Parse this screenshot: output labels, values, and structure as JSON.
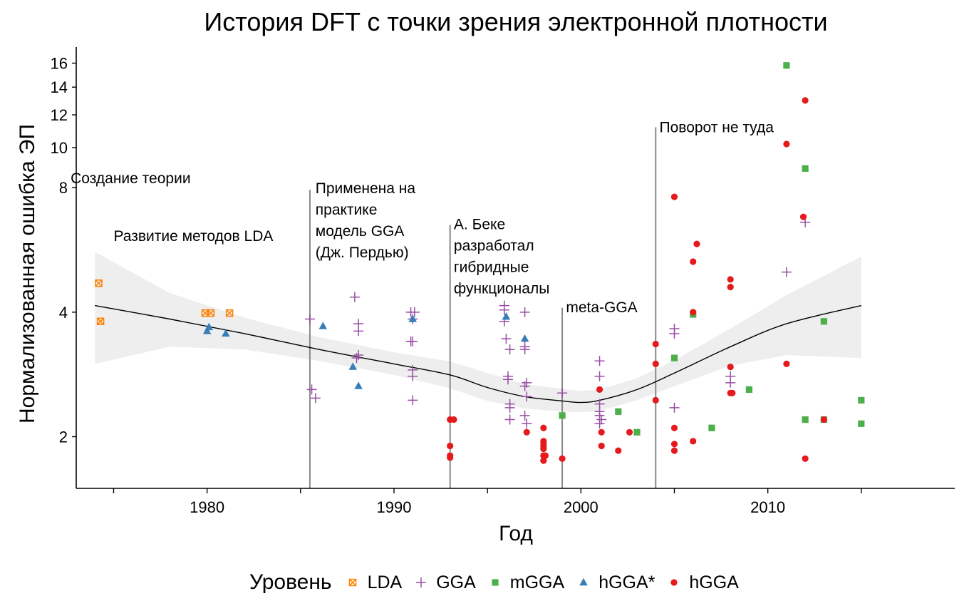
{
  "chart_data": {
    "type": "scatter",
    "title": "История DFT с точки зрения электронной плотности",
    "xlabel": "Год",
    "ylabel": "Нормализованная ошибка ЭП",
    "xlim": [
      1973,
      2020
    ],
    "ylim": [
      1.5,
      17.5
    ],
    "y_scale": "log",
    "x_ticks": [
      1980,
      1990,
      2000,
      2010
    ],
    "y_ticks": [
      2,
      4,
      8,
      10,
      12,
      14,
      16
    ],
    "legend_title": "Уровень",
    "legend_position": "bottom",
    "series": [
      {
        "name": "LDA",
        "color": "#ff7f00",
        "marker": "square-x",
        "points": [
          [
            1974.2,
            4.7
          ],
          [
            1974.3,
            3.8
          ],
          [
            1979.9,
            3.98
          ],
          [
            1980.2,
            3.98
          ],
          [
            1981.2,
            3.98
          ]
        ]
      },
      {
        "name": "GGA",
        "color": "#984ea3",
        "marker": "plus",
        "points": [
          [
            1985.5,
            3.85
          ],
          [
            1985.6,
            2.6
          ],
          [
            1985.8,
            2.48
          ],
          [
            1987.9,
            4.35
          ],
          [
            1988.0,
            3.1
          ],
          [
            1988.1,
            3.15
          ],
          [
            1988.1,
            3.75
          ],
          [
            1988.1,
            3.6
          ],
          [
            1990.9,
            4.0
          ],
          [
            1990.9,
            3.4
          ],
          [
            1991.0,
            3.4
          ],
          [
            1991.0,
            3.85
          ],
          [
            1991.0,
            2.9
          ],
          [
            1991.0,
            2.8
          ],
          [
            1991.0,
            2.45
          ],
          [
            1991.1,
            4.0
          ],
          [
            1995.9,
            4.15
          ],
          [
            1995.9,
            4.05
          ],
          [
            1995.9,
            3.8
          ],
          [
            1996.0,
            3.45
          ],
          [
            1996.1,
            2.8
          ],
          [
            1996.1,
            2.75
          ],
          [
            1996.2,
            3.25
          ],
          [
            1996.2,
            2.4
          ],
          [
            1996.2,
            2.35
          ],
          [
            1996.2,
            2.2
          ],
          [
            1997.0,
            3.3
          ],
          [
            1997.0,
            3.25
          ],
          [
            1997.0,
            4.0
          ],
          [
            1997.0,
            2.65
          ],
          [
            1997.0,
            2.25
          ],
          [
            1997.1,
            2.7
          ],
          [
            1997.1,
            2.5
          ],
          [
            1997.1,
            2.15
          ],
          [
            1999.0,
            2.55
          ],
          [
            2001.0,
            3.05
          ],
          [
            2001.0,
            2.8
          ],
          [
            2001.0,
            2.4
          ],
          [
            2001.0,
            2.3
          ],
          [
            2001.0,
            2.25
          ],
          [
            2001.0,
            2.15
          ],
          [
            2001.1,
            2.2
          ],
          [
            2005.0,
            3.65
          ],
          [
            2005.0,
            3.55
          ],
          [
            2005.0,
            2.35
          ],
          [
            2008.0,
            2.8
          ],
          [
            2008.0,
            2.7
          ],
          [
            2011.0,
            5.0
          ],
          [
            2012.0,
            6.6
          ]
        ]
      },
      {
        "name": "mGGA",
        "color": "#4daf4a",
        "marker": "square",
        "points": [
          [
            1999.0,
            2.25
          ],
          [
            2002.0,
            2.3
          ],
          [
            2003.0,
            2.05
          ],
          [
            2005.0,
            3.1
          ],
          [
            2006.0,
            3.95
          ],
          [
            2007.0,
            2.1
          ],
          [
            2009.0,
            2.6
          ],
          [
            2011.0,
            15.8
          ],
          [
            2012.0,
            8.9
          ],
          [
            2012.0,
            2.2
          ],
          [
            2013.0,
            3.8
          ],
          [
            2013.0,
            2.2
          ],
          [
            2015.0,
            2.15
          ],
          [
            2015.0,
            2.45
          ]
        ]
      },
      {
        "name": "hGGA*",
        "color": "#377eb8",
        "marker": "triangle",
        "points": [
          [
            1980.0,
            3.6
          ],
          [
            1980.1,
            3.68
          ],
          [
            1981.0,
            3.55
          ],
          [
            1986.2,
            3.7
          ],
          [
            1987.8,
            2.95
          ],
          [
            1988.1,
            2.65
          ],
          [
            1991.0,
            3.85
          ],
          [
            1996.0,
            3.9
          ],
          [
            1997.0,
            3.45
          ]
        ]
      },
      {
        "name": "hGGA",
        "color": "#e41a1c",
        "marker": "circle",
        "points": [
          [
            1993.0,
            2.2
          ],
          [
            1993.0,
            1.9
          ],
          [
            1993.0,
            1.8
          ],
          [
            1993.0,
            1.78
          ],
          [
            1993.2,
            2.2
          ],
          [
            1997.1,
            2.05
          ],
          [
            1998.0,
            2.1
          ],
          [
            1998.0,
            1.95
          ],
          [
            1998.0,
            1.93
          ],
          [
            1998.0,
            1.9
          ],
          [
            1998.0,
            1.87
          ],
          [
            1998.0,
            1.8
          ],
          [
            1998.0,
            1.75
          ],
          [
            1998.1,
            1.8
          ],
          [
            1999.0,
            1.77
          ],
          [
            2001.0,
            2.6
          ],
          [
            2001.1,
            2.05
          ],
          [
            2001.1,
            1.9
          ],
          [
            2002.0,
            1.85
          ],
          [
            2002.6,
            2.05
          ],
          [
            2004.0,
            3.35
          ],
          [
            2004.0,
            3.0
          ],
          [
            2004.0,
            2.45
          ],
          [
            2005.0,
            7.6
          ],
          [
            2005.0,
            2.1
          ],
          [
            2005.0,
            1.92
          ],
          [
            2005.0,
            1.85
          ],
          [
            2006.0,
            5.3
          ],
          [
            2006.0,
            4.0
          ],
          [
            2006.0,
            1.95
          ],
          [
            2006.2,
            5.85
          ],
          [
            2008.0,
            4.8
          ],
          [
            2008.0,
            4.6
          ],
          [
            2008.0,
            2.95
          ],
          [
            2008.0,
            2.55
          ],
          [
            2008.1,
            2.55
          ],
          [
            2011.0,
            10.2
          ],
          [
            2011.0,
            3.0
          ],
          [
            2011.9,
            6.8
          ],
          [
            2012.0,
            13.0
          ],
          [
            2012.0,
            1.77
          ],
          [
            2013.0,
            2.2
          ]
        ]
      }
    ],
    "smooth": {
      "x": [
        1974,
        1978,
        1982,
        1986,
        1990,
        1993,
        1995,
        1997,
        1999,
        2000,
        2001,
        2003,
        2005,
        2008,
        2011,
        2015
      ],
      "y": [
        4.15,
        3.85,
        3.55,
        3.25,
        3.0,
        2.82,
        2.63,
        2.5,
        2.44,
        2.42,
        2.45,
        2.6,
        2.85,
        3.3,
        3.75,
        4.15
      ],
      "ci_lower": [
        3.0,
        3.3,
        3.25,
        3.05,
        2.82,
        2.62,
        2.44,
        2.34,
        2.3,
        2.29,
        2.31,
        2.45,
        2.65,
        2.97,
        3.15,
        3.1
      ],
      "ci_upper": [
        5.6,
        4.45,
        3.88,
        3.48,
        3.2,
        3.04,
        2.85,
        2.68,
        2.61,
        2.58,
        2.6,
        2.77,
        3.06,
        3.65,
        4.4,
        5.45
      ]
    },
    "events": [
      {
        "x": 1985.5,
        "top": 7.9
      },
      {
        "x": 1993.0,
        "top": 6.5
      },
      {
        "x": 1999.0,
        "top": 4.1
      },
      {
        "x": 2004.0,
        "top": 11.2
      }
    ],
    "annotations": [
      {
        "lines": [
          "Создание теории"
        ],
        "x": 1972.7,
        "y": 8.2
      },
      {
        "lines": [
          "Развитие методов LDA"
        ],
        "x": 1975.0,
        "y": 5.95
      },
      {
        "lines": [
          "Применена на",
          "практике",
          "модель GGA",
          "(Дж. Пердью)"
        ],
        "x": 1985.8,
        "y": 7.75
      },
      {
        "lines": [
          "А. Беке",
          "разработал",
          "гибридные",
          "функционалы"
        ],
        "x": 1993.2,
        "y": 6.35
      },
      {
        "lines": [
          "meta-GGA"
        ],
        "x": 1999.2,
        "y": 4.0
      },
      {
        "lines": [
          "Поворот не туда"
        ],
        "x": 2004.2,
        "y": 10.9
      }
    ]
  }
}
